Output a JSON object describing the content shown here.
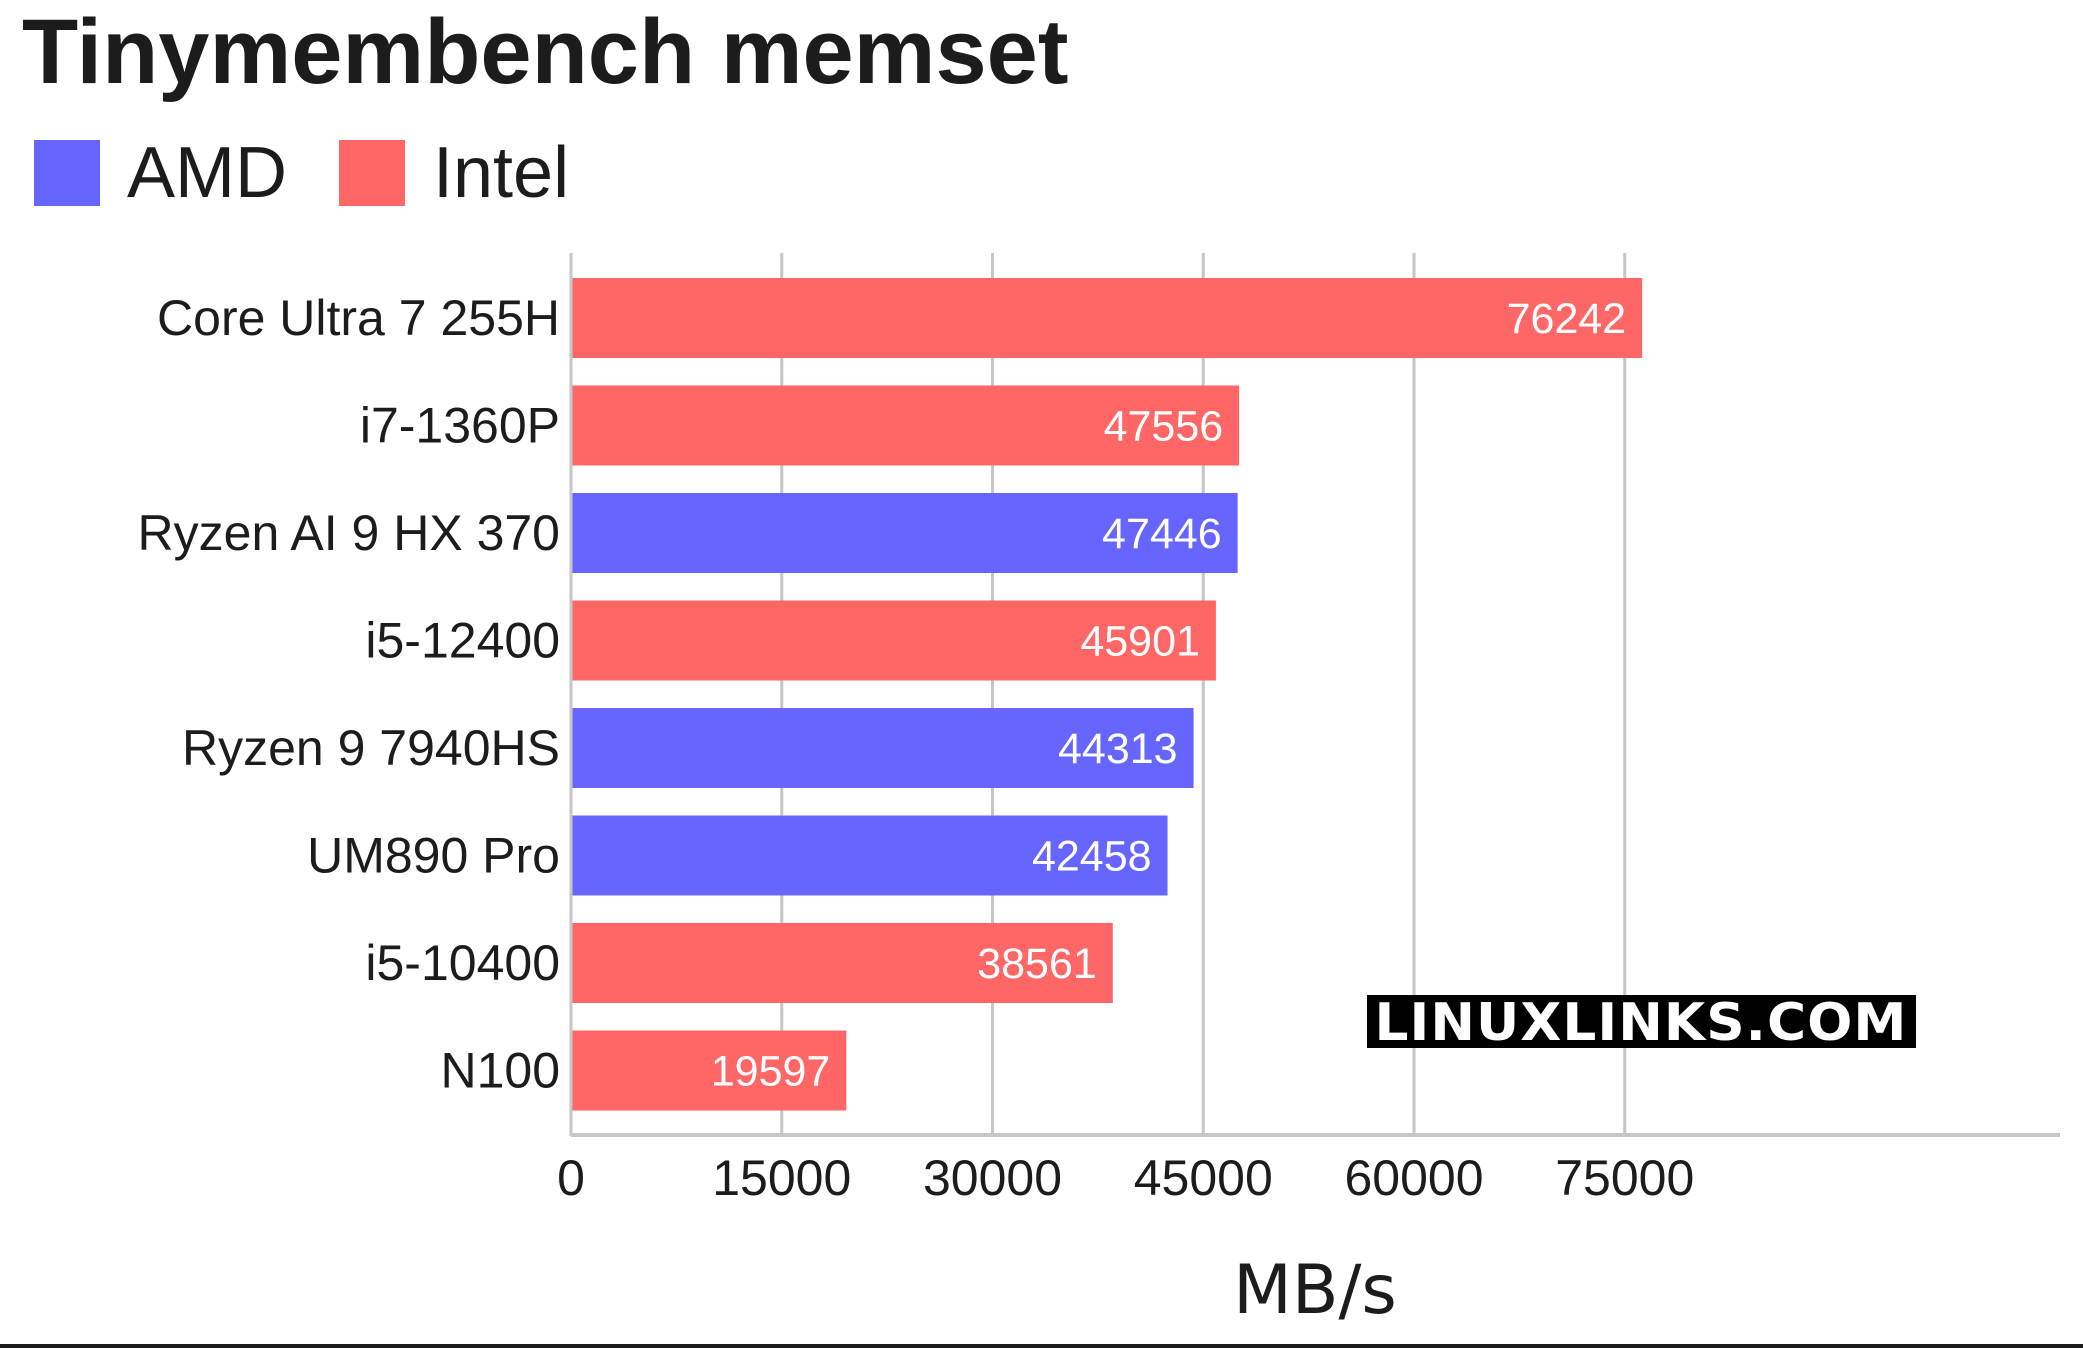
{
  "chart_data": {
    "type": "bar",
    "orientation": "horizontal",
    "title": "Tinymembench memset",
    "xlabel": "MB/s",
    "ylabel": "",
    "xlim": [
      0,
      79500
    ],
    "xticks": [
      0,
      15000,
      30000,
      45000,
      60000,
      75000
    ],
    "grid": true,
    "legend": {
      "placement": "top-left",
      "entries": [
        {
          "name": "AMD",
          "color": "#6666ff"
        },
        {
          "name": "Intel",
          "color": "#ff6666"
        }
      ]
    },
    "categories": [
      "Core Ultra 7 255H",
      "i7-1360P",
      "Ryzen AI 9 HX 370",
      "i5-12400",
      "Ryzen 9 7940HS",
      "UM890 Pro",
      "i5-10400",
      "N100"
    ],
    "values": [
      76242,
      47556,
      47446,
      45901,
      44313,
      42458,
      38561,
      19597
    ],
    "vendor": [
      "Intel",
      "Intel",
      "AMD",
      "Intel",
      "AMD",
      "AMD",
      "Intel",
      "Intel"
    ]
  },
  "watermark": "LINUXLINKS.COM"
}
